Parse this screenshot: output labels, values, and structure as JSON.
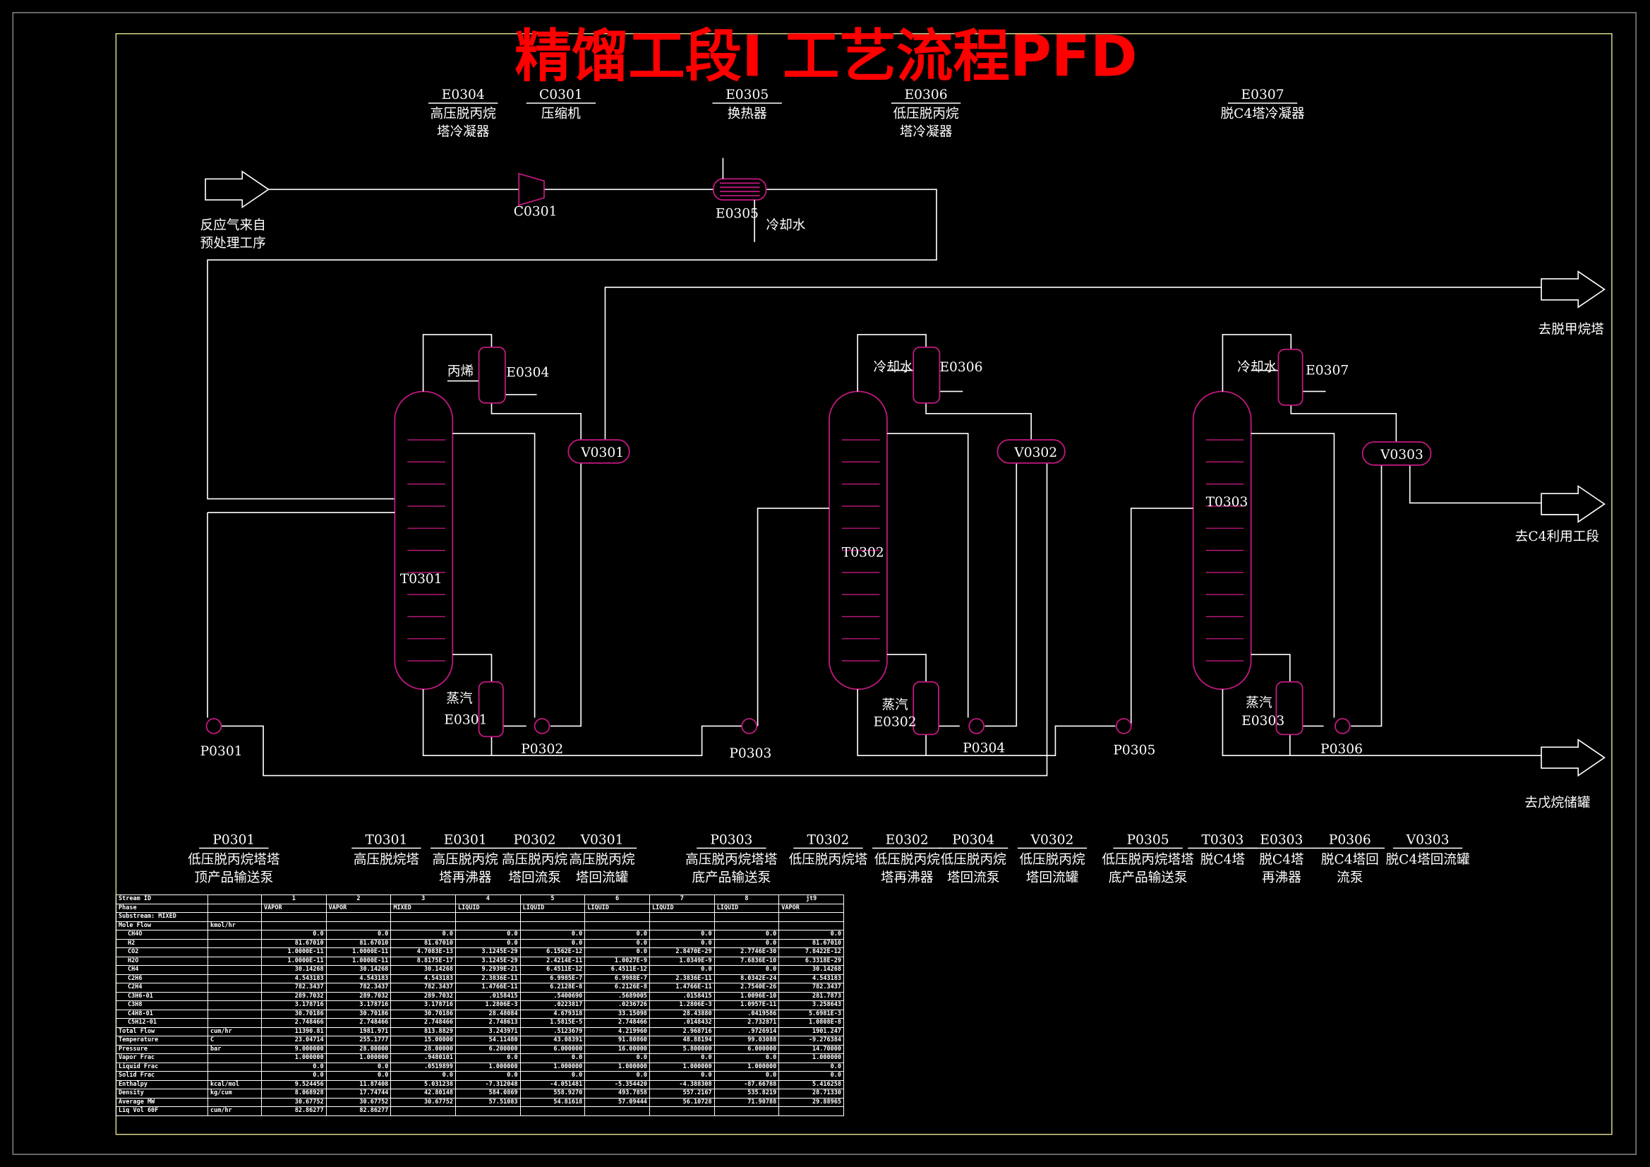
{
  "title": "精馏工段Ⅰ 工艺流程PFD",
  "colors": {
    "equipment": "#c2197f",
    "pipe": "#ffffff",
    "title": "#ff0000",
    "frame": "#d8d890"
  },
  "top_labels": [
    {
      "code": "E0304",
      "lines": [
        "高压脱丙烷",
        "塔冷凝器"
      ]
    },
    {
      "code": "C0301",
      "lines": [
        "压缩机"
      ]
    },
    {
      "code": "E0305",
      "lines": [
        "换热器"
      ]
    },
    {
      "code": "E0306",
      "lines": [
        "低压脱丙烷",
        "塔冷凝器"
      ]
    },
    {
      "code": "E0307",
      "lines": [
        "脱C4塔冷凝器"
      ]
    }
  ],
  "diagram": {
    "feed_label": [
      "反应气来自",
      "预处理工序"
    ],
    "outlets": [
      "去脱甲烷塔",
      "去C4利用工段",
      "去戊烷储罐"
    ],
    "equipment": {
      "C0301": "C0301",
      "E0305": "E0305",
      "cooling_water": "冷却水",
      "T0301": "T0301",
      "T0302": "T0302",
      "T0303": "T0303",
      "E0304": "E0304",
      "E0306": "E0306",
      "E0307": "E0307",
      "V0301": "V0301",
      "V0302": "V0302",
      "V0303": "V0303",
      "E0301": "E0301",
      "E0302": "E0302",
      "E0303": "E0303",
      "P0301": "P0301",
      "P0302": "P0302",
      "P0303": "P0303",
      "P0304": "P0304",
      "P0305": "P0305",
      "P0306": "P0306",
      "propylene": "丙烯",
      "steam": "蒸汽"
    }
  },
  "legend": [
    {
      "code": "P0301",
      "lines": [
        "低压脱丙烷塔塔",
        "顶产品输送泵"
      ]
    },
    {
      "code": "T0301",
      "lines": [
        "高压脱烷塔"
      ]
    },
    {
      "code": "E0301",
      "lines": [
        "高压脱丙烷",
        "塔再沸器"
      ]
    },
    {
      "code": "P0302",
      "lines": [
        "高压脱丙烷",
        "塔回流泵"
      ]
    },
    {
      "code": "V0301",
      "lines": [
        "高压脱丙烷",
        "塔回流罐"
      ]
    },
    {
      "code": "P0303",
      "lines": [
        "高压脱丙烷塔塔",
        "底产品输送泵"
      ]
    },
    {
      "code": "T0302",
      "lines": [
        "低压脱丙烷塔"
      ]
    },
    {
      "code": "E0302",
      "lines": [
        "低压脱丙烷",
        "塔再沸器"
      ]
    },
    {
      "code": "P0304",
      "lines": [
        "低压脱丙烷",
        "塔回流泵"
      ]
    },
    {
      "code": "V0302",
      "lines": [
        "低压脱丙烷",
        "塔回流罐"
      ]
    },
    {
      "code": "P0305",
      "lines": [
        "低压脱丙烷塔塔",
        "底产品输送泵"
      ]
    },
    {
      "code": "T0303",
      "lines": [
        "脱C4塔"
      ]
    },
    {
      "code": "E0303",
      "lines": [
        "脱C4塔",
        "再沸器"
      ]
    },
    {
      "code": "P0306",
      "lines": [
        "脱C4塔回",
        "流泵"
      ]
    },
    {
      "code": "V0303",
      "lines": [
        "脱C4塔回流罐"
      ]
    }
  ],
  "stream_table": {
    "header": {
      "label": "Stream ID",
      "ids": [
        "1",
        "2",
        "3",
        "4",
        "5",
        "6",
        "7",
        "8",
        "jt9"
      ]
    },
    "phase": {
      "label": "Phase",
      "values": [
        "VAPOR",
        "VAPOR",
        "MIXED",
        "LIQUID",
        "LIQUID",
        "LIQUID",
        "LIQUID",
        "LIQUID",
        "VAPOR"
      ]
    },
    "substream": "Substream: MIXED",
    "mole_flow": {
      "label": "Mole Flow",
      "unit": "kmol/hr"
    },
    "components": [
      {
        "label": "CH4O",
        "values": [
          "0.0",
          "0.0",
          "0.0",
          "0.0",
          "0.0",
          "0.0",
          "0.0",
          "0.0",
          "0.0"
        ]
      },
      {
        "label": "H2",
        "values": [
          "81.67010",
          "81.67010",
          "81.67010",
          "0.0",
          "0.0",
          "0.0",
          "0.0",
          "0.0",
          "81.67010"
        ]
      },
      {
        "label": "CO2",
        "values": [
          "1.0000E-11",
          "1.0000E-11",
          "4.7083E-13",
          "3.1245E-29",
          "6.1562E-12",
          "0.0",
          "2.8470E-29",
          "2.7746E-30",
          "7.8422E-12"
        ]
      },
      {
        "label": "H2O",
        "values": [
          "1.0000E-11",
          "1.0000E-11",
          "8.8175E-17",
          "3.1245E-29",
          "2.4214E-11",
          "1.0027E-9",
          "1.0349E-9",
          "7.6836E-10",
          "6.3318E-29"
        ]
      },
      {
        "label": "CH4",
        "values": [
          "30.14268",
          "30.14268",
          "30.14268",
          "9.2939E-21",
          "6.4511E-12",
          "6.4511E-12",
          "0.0",
          "0.0",
          "30.14268"
        ]
      },
      {
        "label": "C2H6",
        "values": [
          "4.543183",
          "4.543183",
          "4.543183",
          "2.3836E-11",
          "6.9985E-7",
          "6.9988E-7",
          "2.3836E-11",
          "8.0342E-24",
          "4.543183"
        ]
      },
      {
        "label": "C2H4",
        "values": [
          "782.3437",
          "782.3437",
          "782.3437",
          "1.4766E-11",
          "6.2128E-8",
          "6.2126E-8",
          "1.4766E-11",
          "2.7540E-26",
          "782.3437"
        ]
      },
      {
        "label": "C3H6-01",
        "values": [
          "289.7032",
          "289.7032",
          "289.7032",
          ".0158415",
          ".5400690",
          ".5689005",
          ".0158415",
          "1.0096E-10",
          "281.7873"
        ]
      },
      {
        "label": "C3H8",
        "values": [
          "3.178716",
          "3.178716",
          "3.178716",
          "1.2806E-3",
          ".0223817",
          ".0236726",
          "1.2806E-3",
          "1.0957E-11",
          "3.258643"
        ]
      },
      {
        "label": "C4H8-01",
        "values": [
          "30.70186",
          "30.70186",
          "30.70186",
          "28.48084",
          "4.679318",
          "33.15098",
          "28.43880",
          ".0419586",
          "5.6981E-3"
        ]
      },
      {
        "label": "C5H12-01",
        "values": [
          "2.748466",
          "2.748466",
          "2.748466",
          "2.748613",
          "1.5815E-5",
          "2.748466",
          ".0148432",
          "2.732871",
          "1.0808E-8"
        ]
      }
    ],
    "properties": [
      {
        "label": "Total Flow",
        "unit": "cum/hr",
        "values": [
          "11390.81",
          "1981.971",
          "813.8829",
          "3.243971",
          ".5123679",
          "4.219960",
          "2.968716",
          ".9726914",
          "1901.247"
        ]
      },
      {
        "label": "Temperature",
        "unit": "C",
        "values": [
          "23.04714",
          "255.1777",
          "15.00000",
          "54.11480",
          "43.08391",
          "91.80860",
          "48.88194",
          "99.03088",
          "-9.276384"
        ]
      },
      {
        "label": "Pressure",
        "unit": "bar",
        "values": [
          "9.000000",
          "28.00000",
          "28.00000",
          "6.200000",
          "6.000000",
          "16.00000",
          "5.800000",
          "6.000000",
          "14.70000"
        ]
      },
      {
        "label": "Vapor Frac",
        "unit": "",
        "values": [
          "1.000000",
          "1.000000",
          ".9480101",
          "0.0",
          "0.0",
          "0.0",
          "0.0",
          "0.0",
          "1.000000"
        ]
      },
      {
        "label": "Liquid Frac",
        "unit": "",
        "values": [
          "0.0",
          "0.0",
          ".0519899",
          "1.000000",
          "1.000000",
          "1.000000",
          "1.000000",
          "1.000000",
          "0.0"
        ]
      },
      {
        "label": "Solid Frac",
        "unit": "",
        "values": [
          "0.0",
          "0.0",
          "0.0",
          "0.0",
          "0.0",
          "0.0",
          "0.0",
          "0.0",
          "0.0"
        ]
      },
      {
        "label": "Enthalpy",
        "unit": "kcal/mol",
        "values": [
          "9.524456",
          "11.87408",
          "5.031238",
          "-7.312048",
          "-4.051481",
          "-5.354420",
          "-4.388308",
          "-87.66788",
          "5.416258"
        ]
      },
      {
        "label": "Density",
        "unit": "kg/cum",
        "values": [
          "8.068928",
          "17.74744",
          "42.80148",
          "584.0869",
          "558.9270",
          "493.7858",
          "557.2167",
          "535.8219",
          "28.71330"
        ]
      },
      {
        "label": "Average MW",
        "unit": "",
        "values": [
          "30.67752",
          "30.67752",
          "30.67752",
          "57.51083",
          "54.81618",
          "57.09444",
          "56.10728",
          "71.90788",
          "29.88965"
        ]
      },
      {
        "label": "Liq Vol 60F",
        "unit": "cum/hr",
        "values": [
          "82.86277",
          "82.86277",
          "",
          "",
          "",
          "",
          "",
          "",
          ""
        ]
      }
    ]
  }
}
